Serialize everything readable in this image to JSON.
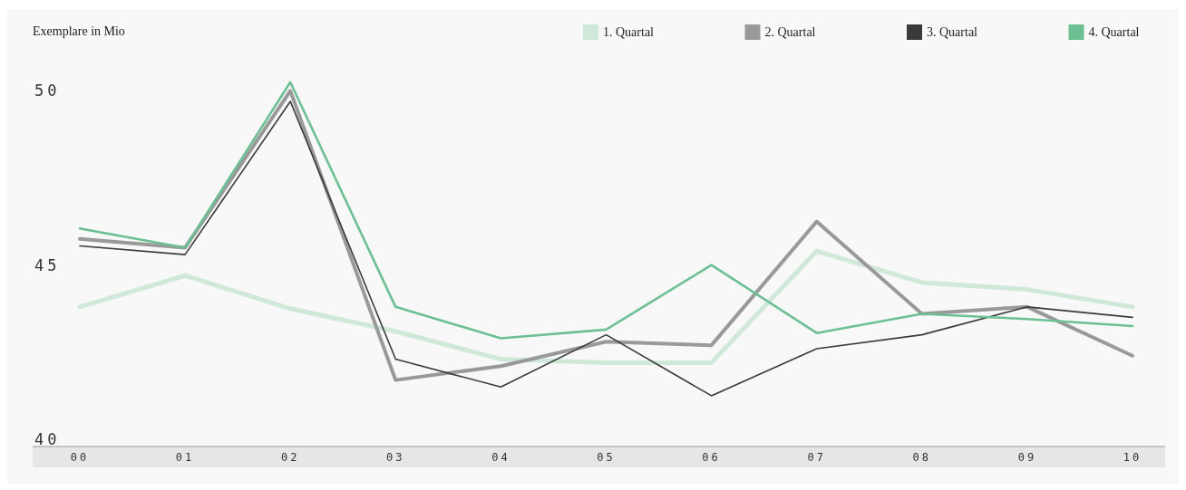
{
  "chart_data": {
    "type": "line",
    "ylabel": "Exemplare in Mio",
    "categories": [
      "00",
      "01",
      "02",
      "03",
      "04",
      "05",
      "06",
      "07",
      "08",
      "09",
      "10"
    ],
    "ylim": [
      38.7,
      52.35
    ],
    "yticks": [
      40,
      45,
      50
    ],
    "grid": false,
    "legend": "top right",
    "marker": "none",
    "line_style": "solid",
    "series": [
      {
        "name": "1. Quartal",
        "color": "#cfe8d8",
        "values": [
          43.8,
          44.7,
          43.75,
          43.1,
          42.3,
          42.2,
          42.2,
          45.4,
          44.5,
          44.3,
          43.8
        ]
      },
      {
        "name": "2. Quartal",
        "color": "#999999",
        "values": [
          45.75,
          45.5,
          50.0,
          41.7,
          42.1,
          42.8,
          42.7,
          46.25,
          43.6,
          43.8,
          42.4
        ]
      },
      {
        "name": "3. Quartal",
        "color": "#3a3a3a",
        "values": [
          45.55,
          45.3,
          49.7,
          42.3,
          41.5,
          43.0,
          41.25,
          42.6,
          43.0,
          43.8,
          43.5
        ]
      },
      {
        "name": "4. Quartal",
        "color": "#6dbf94",
        "values": [
          46.05,
          45.5,
          50.25,
          43.8,
          42.9,
          43.15,
          45.0,
          43.05,
          43.6,
          43.45,
          43.25
        ]
      }
    ]
  }
}
